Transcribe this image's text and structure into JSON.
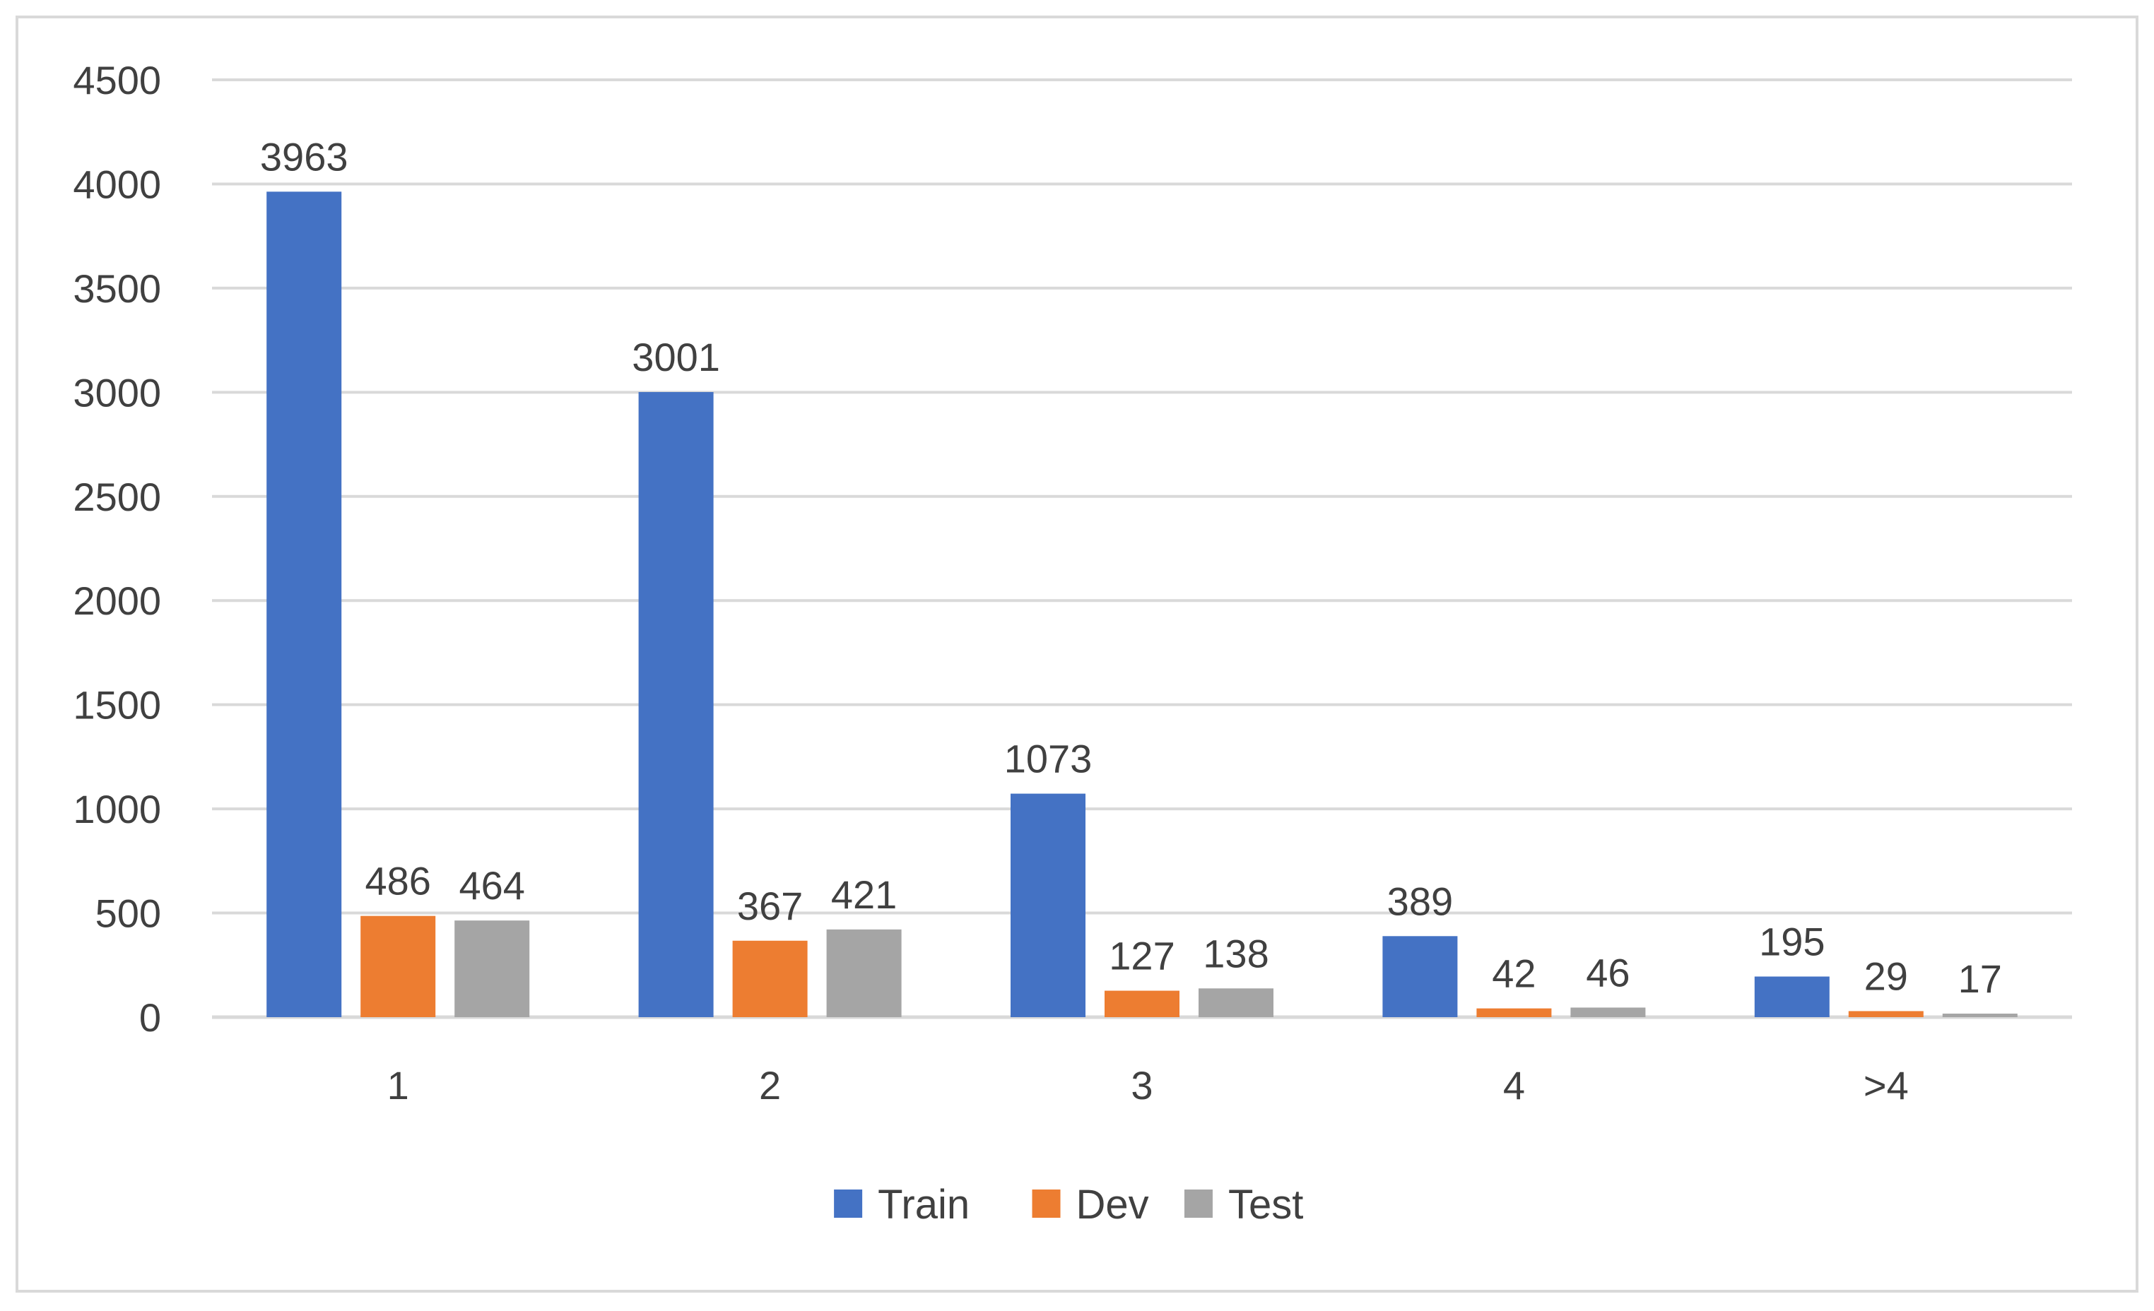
{
  "chart_data": {
    "type": "bar",
    "title": "",
    "xlabel": "",
    "ylabel": "",
    "categories": [
      "1",
      "2",
      "3",
      "4",
      ">4"
    ],
    "series": [
      {
        "name": "Train",
        "color": "#4472C4",
        "values": [
          3963,
          3001,
          1073,
          389,
          195
        ]
      },
      {
        "name": "Dev",
        "color": "#ED7D31",
        "values": [
          486,
          367,
          127,
          42,
          29
        ]
      },
      {
        "name": "Test",
        "color": "#A5A5A5",
        "values": [
          464,
          421,
          138,
          46,
          17
        ]
      }
    ],
    "ylim": [
      0,
      4500
    ],
    "yticks": [
      "0",
      "500",
      "1000",
      "1500",
      "2000",
      "2500",
      "3000",
      "3500",
      "4000",
      "4500"
    ],
    "grid": true,
    "legend_position": "bottom",
    "data_labels": true
  }
}
